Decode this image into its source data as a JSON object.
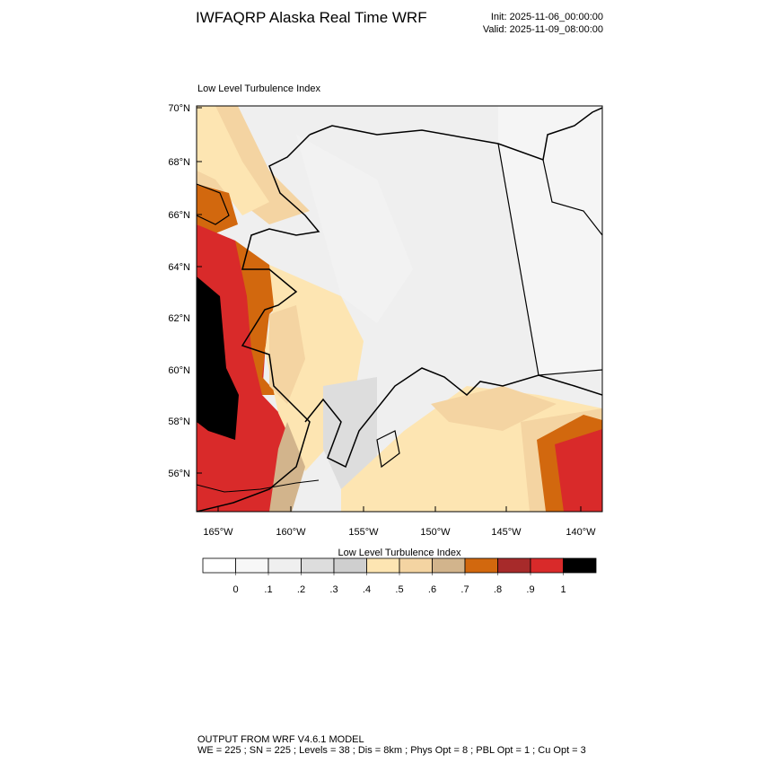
{
  "header": {
    "title": "IWFAQRP Alaska Real Time WRF",
    "init": "Init: 2025-11-06_00:00:00",
    "valid": "Valid: 2025-11-09_08:00:00"
  },
  "map": {
    "label": "Low Level Turbulence Index",
    "lat_labels": [
      "70°N",
      "68°N",
      "66°N",
      "64°N",
      "62°N",
      "60°N",
      "58°N",
      "56°N"
    ],
    "lon_labels": [
      "165°W",
      "160°W",
      "155°W",
      "150°W",
      "145°W",
      "140°W"
    ]
  },
  "colorbar": {
    "title": "Low Level Turbulence Index",
    "colors": [
      "#ffffff",
      "#f7f7f7",
      "#efefef",
      "#dddddd",
      "#cfcfcf",
      "#fde5b2",
      "#f4d4a2",
      "#d2b48c",
      "#d2680e",
      "#a72a2a",
      "#d92a2a",
      "#000000"
    ],
    "levels": [
      0,
      {
        "value": 0.1,
        "label": ".1"
      },
      {
        "value": 0.2,
        "label": ".2"
      },
      {
        "value": 0.3,
        "label": ".3"
      },
      {
        "value": 0.4,
        "label": ".4"
      },
      {
        "value": 0.5,
        "label": ".5"
      },
      {
        "value": 0.6,
        "label": ".6"
      },
      {
        "value": 0.7,
        "label": ".7"
      },
      {
        "value": 0.8,
        "label": ".8"
      },
      {
        "value": 0.9,
        "label": ".9"
      },
      1
    ]
  },
  "footer": {
    "line1": "OUTPUT FROM WRF V4.6.1 MODEL",
    "line2": "WE = 225 ; SN = 225 ; Levels = 38 ; Dis = 8km ; Phys Opt = 8 ; PBL Opt = 1 ; Cu Opt = 3"
  }
}
